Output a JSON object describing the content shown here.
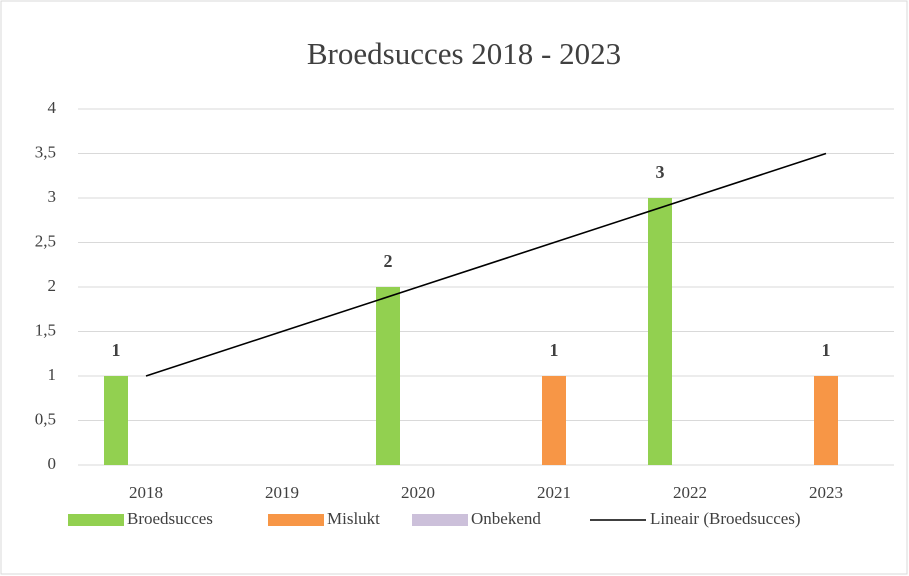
{
  "chart_data": {
    "type": "bar",
    "title": "Broedsucces 2018 - 2023",
    "categories": [
      "2018",
      "2019",
      "2020",
      "2021",
      "2022",
      "2023"
    ],
    "series": [
      {
        "name": "Broedsucces",
        "color": "#92d050",
        "values": [
          1,
          null,
          2,
          null,
          3,
          null
        ]
      },
      {
        "name": "Mislukt",
        "color": "#f79646",
        "values": [
          null,
          null,
          null,
          1,
          null,
          1
        ]
      },
      {
        "name": "Onbekend",
        "color": "#ccc0da",
        "values": [
          null,
          null,
          null,
          null,
          null,
          null
        ]
      }
    ],
    "trendline": {
      "name": "Lineair (Broedsucces)",
      "color": "#000000",
      "values": [
        1,
        1.5,
        2,
        2.5,
        3,
        3.5
      ]
    },
    "ylim": [
      0,
      4
    ],
    "yticks": [
      0,
      {
        "value": 0.5,
        "label": "0,5"
      },
      1,
      {
        "value": 1.5,
        "label": "1,5"
      },
      2,
      {
        "value": 2.5,
        "label": "2,5"
      },
      3,
      {
        "value": 3.5,
        "label": "3,5"
      },
      4
    ],
    "grid": true,
    "legend": "bottom"
  }
}
